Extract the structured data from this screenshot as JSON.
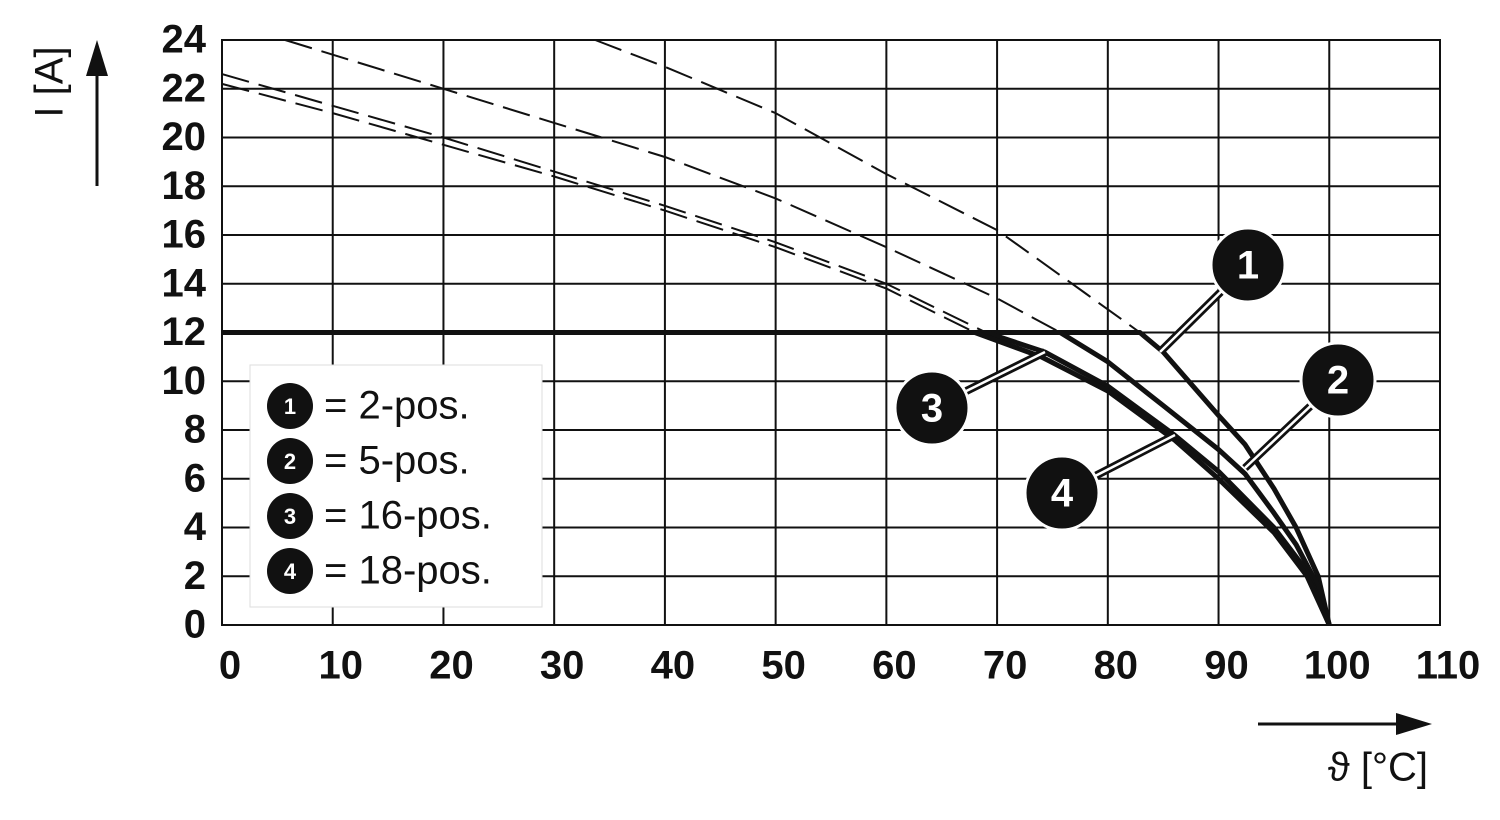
{
  "chart_data": {
    "type": "line",
    "x_label": "ϑ [°C]",
    "y_label": "I [A]",
    "xlim": [
      0,
      110
    ],
    "xticks": [
      0,
      10,
      20,
      30,
      40,
      50,
      60,
      70,
      80,
      90,
      100,
      110
    ],
    "ylim": [
      0,
      24
    ],
    "yticks": [
      0,
      2,
      4,
      6,
      8,
      10,
      12,
      14,
      16,
      18,
      20,
      22,
      24
    ],
    "grid": true,
    "color": "#111111",
    "series": [
      {
        "label": "1",
        "name": "= 2-pos.",
        "x": [
          0,
          82.9,
          85,
          90,
          92.4,
          95,
          97,
          99,
          100
        ],
        "values": [
          12,
          12,
          11.2,
          8.6,
          7.4,
          5.6,
          4,
          2,
          0
        ],
        "dashed_x": [
          33.7,
          40,
          50,
          60,
          70,
          78,
          82.9
        ],
        "dashed_values": [
          24,
          22.9,
          21,
          18.5,
          16.2,
          13.6,
          12
        ]
      },
      {
        "label": "2",
        "name": "= 5-pos.",
        "x": [
          0,
          75.7,
          80,
          85,
          90,
          92.4,
          95,
          97,
          99,
          100
        ],
        "values": [
          12,
          12,
          10.8,
          9,
          7.2,
          6.2,
          4.6,
          3.3,
          1.6,
          0
        ],
        "dashed_x": [
          5.7,
          20,
          30,
          40,
          50,
          60,
          70,
          75.7
        ],
        "dashed_values": [
          24,
          22,
          20.6,
          19.2,
          17.5,
          15.5,
          13.4,
          12
        ]
      },
      {
        "label": "3",
        "name": "= 16-pos.",
        "x": [
          0,
          69,
          74.3,
          80,
          86,
          90,
          95,
          98,
          100
        ],
        "values": [
          12,
          12,
          11.2,
          9.8,
          7.8,
          6.3,
          4,
          2.2,
          0
        ],
        "dashed_x": [
          0,
          10,
          20,
          30,
          40,
          50,
          60,
          69
        ],
        "dashed_values": [
          22.6,
          21.3,
          20,
          18.6,
          17.2,
          15.7,
          14,
          12
        ]
      },
      {
        "label": "4",
        "name": "= 18-pos.",
        "x": [
          0,
          68,
          74,
          80,
          86,
          90,
          95,
          98,
          100
        ],
        "values": [
          12,
          12,
          11,
          9.6,
          7.6,
          6,
          3.8,
          2,
          0
        ],
        "dashed_x": [
          0,
          10,
          20,
          30,
          40,
          50,
          60,
          68
        ],
        "dashed_values": [
          22.2,
          21,
          19.7,
          18.4,
          17,
          15.5,
          13.8,
          12
        ]
      }
    ]
  }
}
